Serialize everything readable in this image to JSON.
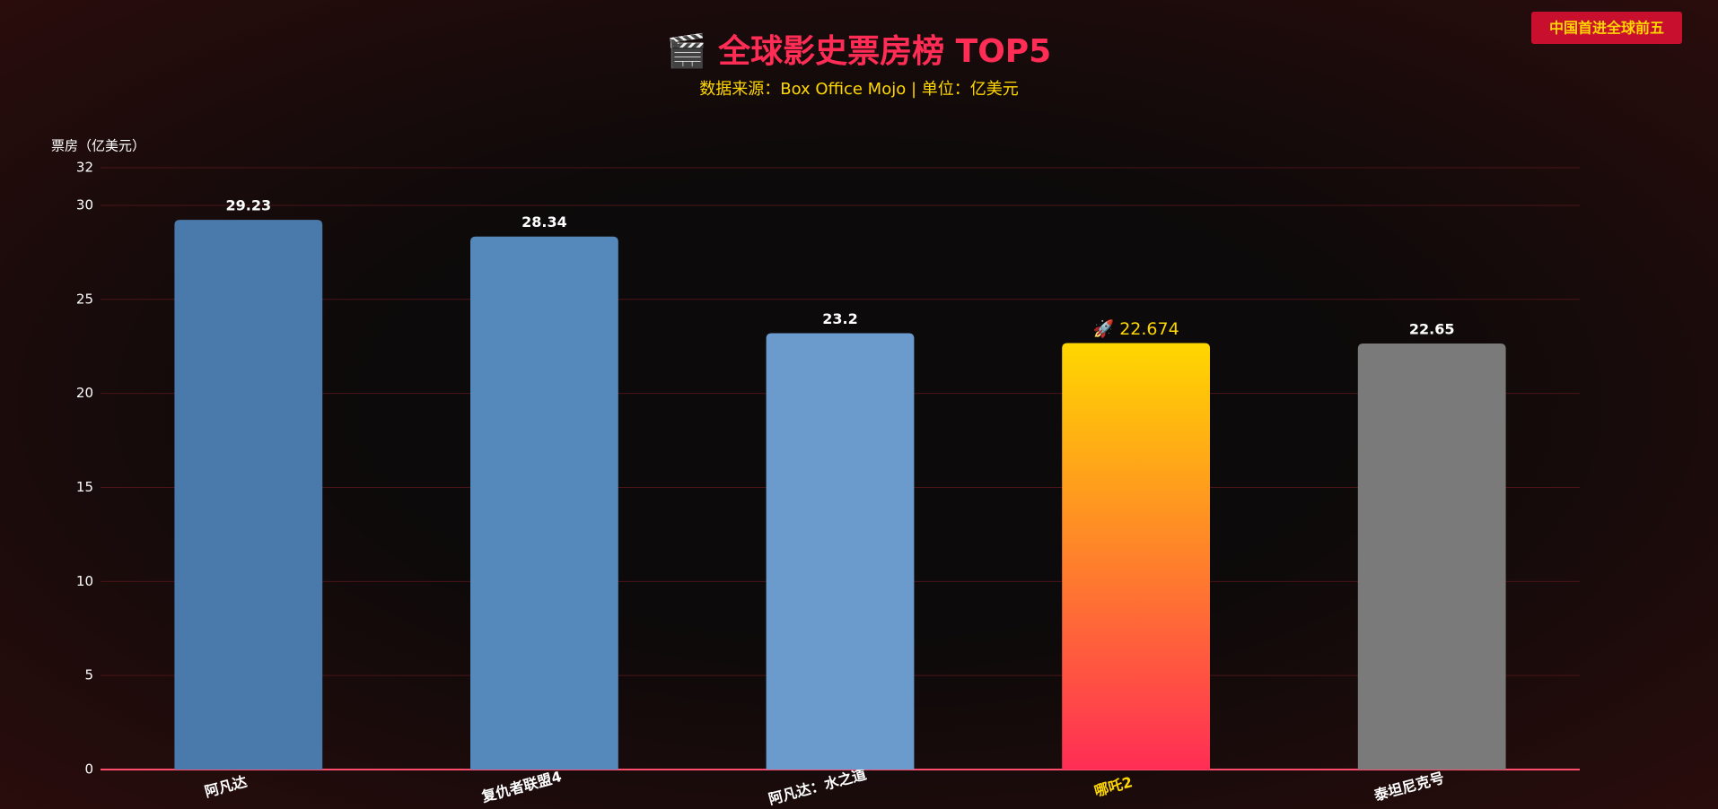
{
  "chart_data": {
    "type": "bar",
    "title": "🎬 全球影史票房榜 TOP5",
    "subtitle": "数据来源：Box Office Mojo | 单位：亿美元",
    "annotation": "中国首进全球前五",
    "y_label": "票房（亿美元）",
    "categories": [
      "阿凡达",
      "复仇者联盟4",
      "阿凡达：水之道",
      "哪吒2",
      "泰坦尼克号"
    ],
    "values": [
      29.23,
      28.34,
      23.2,
      22.674,
      22.65
    ],
    "value_labels": [
      "29.23",
      "28.34",
      "23.2",
      "🚀 22.674",
      "22.65"
    ],
    "colors": [
      "#4a7aab",
      "#5589bb",
      "#6a9bcc",
      [
        "#ffd700",
        "#ff2d55"
      ],
      "#7a7a7a"
    ],
    "ylim": [
      0,
      32
    ],
    "yticks": [
      0,
      5,
      10,
      15,
      20,
      25,
      30,
      32
    ],
    "grid": true
  }
}
